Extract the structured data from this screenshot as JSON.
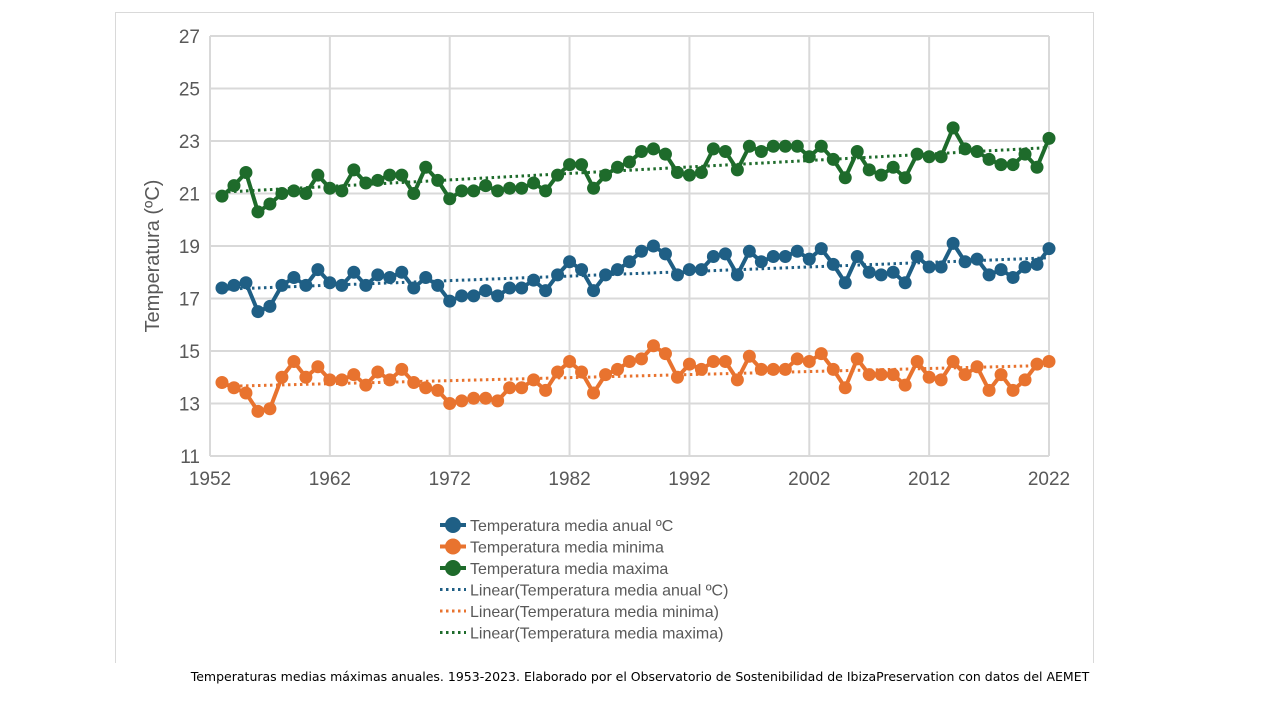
{
  "caption": "Temperaturas medias máximas anuales. 1953-2023. Elaborado por el Observatorio de Sostenibilidad de IbizaPreservation con datos del AEMET",
  "chart_data": {
    "type": "line",
    "ylabel": "Temperatura (ºC)",
    "xlim": [
      1952,
      2022
    ],
    "ylim": [
      11,
      27
    ],
    "x_ticks": [
      1952,
      1962,
      1972,
      1982,
      1992,
      2002,
      2012,
      2022
    ],
    "y_ticks": [
      11,
      13,
      15,
      17,
      19,
      21,
      23,
      25,
      27
    ],
    "grid": true,
    "legend_position": "bottom",
    "x": [
      1953,
      1954,
      1955,
      1956,
      1957,
      1958,
      1959,
      1960,
      1961,
      1962,
      1963,
      1964,
      1965,
      1966,
      1967,
      1968,
      1969,
      1970,
      1971,
      1972,
      1973,
      1974,
      1975,
      1976,
      1977,
      1978,
      1979,
      1980,
      1981,
      1982,
      1983,
      1984,
      1985,
      1986,
      1987,
      1988,
      1989,
      1990,
      1991,
      1992,
      1993,
      1994,
      1995,
      1996,
      1997,
      1998,
      1999,
      2000,
      2001,
      2002,
      2003,
      2004,
      2005,
      2006,
      2007,
      2008,
      2009,
      2010,
      2011,
      2012,
      2013,
      2014,
      2015,
      2016,
      2017,
      2018,
      2019,
      2020,
      2021,
      2022
    ],
    "series": [
      {
        "name": "Temperatura media anual ºC",
        "color": "#1f5f85",
        "values": [
          17.4,
          17.5,
          17.6,
          16.5,
          16.7,
          17.5,
          17.8,
          17.5,
          18.1,
          17.6,
          17.5,
          18.0,
          17.5,
          17.9,
          17.8,
          18.0,
          17.4,
          17.8,
          17.5,
          16.9,
          17.1,
          17.1,
          17.3,
          17.1,
          17.4,
          17.4,
          17.7,
          17.3,
          17.9,
          18.4,
          18.1,
          17.3,
          17.9,
          18.1,
          18.4,
          18.8,
          19.0,
          18.7,
          17.9,
          18.1,
          18.1,
          18.6,
          18.7,
          17.9,
          18.8,
          18.4,
          18.6,
          18.6,
          18.8,
          18.5,
          18.9,
          18.3,
          17.6,
          18.6,
          18.0,
          17.9,
          18.0,
          17.6,
          18.6,
          18.2,
          18.2,
          19.1,
          18.4,
          18.5,
          17.9,
          18.1,
          17.8,
          18.2,
          18.3,
          18.9
        ]
      },
      {
        "name": "Temperatura media minima",
        "color": "#e8732f",
        "values": [
          13.8,
          13.6,
          13.4,
          12.7,
          12.8,
          14.0,
          14.6,
          14.0,
          14.4,
          13.9,
          13.9,
          14.1,
          13.7,
          14.2,
          13.9,
          14.3,
          13.8,
          13.6,
          13.5,
          13.0,
          13.1,
          13.2,
          13.2,
          13.1,
          13.6,
          13.6,
          13.9,
          13.5,
          14.2,
          14.6,
          14.2,
          13.4,
          14.1,
          14.3,
          14.6,
          14.7,
          15.2,
          14.9,
          14.0,
          14.5,
          14.3,
          14.6,
          14.6,
          13.9,
          14.8,
          14.3,
          14.3,
          14.3,
          14.7,
          14.6,
          14.9,
          14.3,
          13.6,
          14.7,
          14.1,
          14.1,
          14.1,
          13.7,
          14.6,
          14.0,
          13.9,
          14.6,
          14.1,
          14.4,
          13.5,
          14.1,
          13.5,
          13.9,
          14.5,
          14.6
        ]
      },
      {
        "name": "Temperatura media maxima",
        "color": "#1e6b2b",
        "values": [
          20.9,
          21.3,
          21.8,
          20.3,
          20.6,
          21.0,
          21.1,
          21.0,
          21.7,
          21.2,
          21.1,
          21.9,
          21.4,
          21.5,
          21.7,
          21.7,
          21.0,
          22.0,
          21.5,
          20.8,
          21.1,
          21.1,
          21.3,
          21.1,
          21.2,
          21.2,
          21.4,
          21.1,
          21.7,
          22.1,
          22.1,
          21.2,
          21.7,
          22.0,
          22.2,
          22.6,
          22.7,
          22.5,
          21.8,
          21.7,
          21.8,
          22.7,
          22.6,
          21.9,
          22.8,
          22.6,
          22.8,
          22.8,
          22.8,
          22.4,
          22.8,
          22.3,
          21.6,
          22.6,
          21.9,
          21.7,
          22.0,
          21.6,
          22.5,
          22.4,
          22.4,
          23.5,
          22.7,
          22.6,
          22.3,
          22.1,
          22.1,
          22.5,
          22.0,
          23.1
        ]
      }
    ],
    "trendlines": [
      {
        "name": "Linear(Temperatura media anual ºC)",
        "color": "#1f5f85",
        "start": [
          1953,
          17.35
        ],
        "end": [
          2022,
          18.55
        ]
      },
      {
        "name": "Linear(Temperatura media minima)",
        "color": "#e8732f",
        "start": [
          1953,
          13.65
        ],
        "end": [
          2022,
          14.45
        ]
      },
      {
        "name": "Linear(Temperatura media maxima)",
        "color": "#1e6b2b",
        "start": [
          1953,
          21.05
        ],
        "end": [
          2022,
          22.75
        ]
      }
    ]
  }
}
